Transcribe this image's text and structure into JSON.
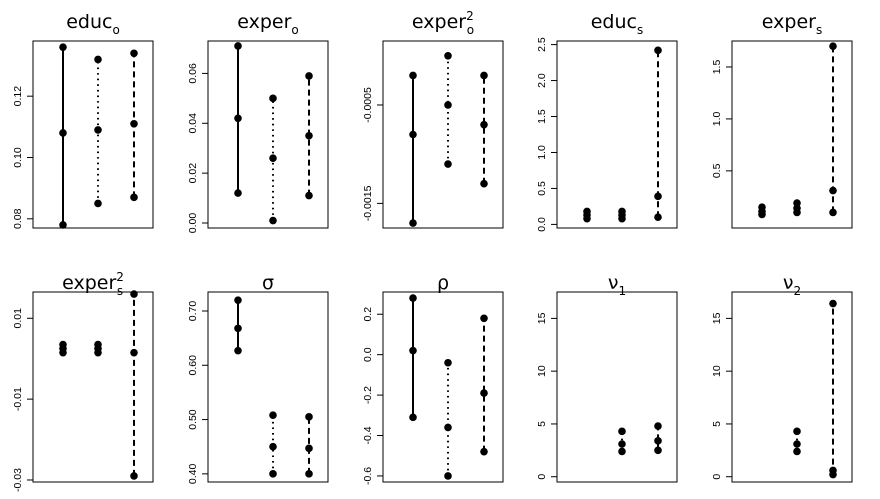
{
  "chart_data": [
    {
      "type": "interval",
      "title": "educ",
      "title_sub": "o",
      "title_sup": "",
      "ylim": [
        0.077,
        0.138
      ],
      "yticks": [
        0.08,
        0.1,
        0.12
      ],
      "ytick_labels": [
        "0.08",
        "0.10",
        "0.12"
      ],
      "series": [
        {
          "style": "solid",
          "values": [
            0.078,
            0.108,
            0.136
          ]
        },
        {
          "style": "dotted",
          "values": [
            0.085,
            0.109,
            0.132
          ]
        },
        {
          "style": "dashed",
          "values": [
            0.087,
            0.111,
            0.134
          ]
        }
      ]
    },
    {
      "type": "interval",
      "title": "exper",
      "title_sub": "o",
      "title_sup": "",
      "ylim": [
        -0.002,
        0.073
      ],
      "yticks": [
        0.0,
        0.02,
        0.04,
        0.06
      ],
      "ytick_labels": [
        "0.00",
        "0.02",
        "0.04",
        "0.06"
      ],
      "series": [
        {
          "style": "solid",
          "values": [
            0.012,
            0.042,
            0.071
          ]
        },
        {
          "style": "dotted",
          "values": [
            0.001,
            0.026,
            0.05
          ]
        },
        {
          "style": "dashed",
          "values": [
            0.011,
            0.035,
            0.059
          ]
        }
      ]
    },
    {
      "type": "interval",
      "title": "exper",
      "title_sub": "o",
      "title_sup": "2",
      "ylim": [
        -0.00175,
        0.00015
      ],
      "yticks": [
        -0.0015,
        -0.0005
      ],
      "ytick_labels": [
        "-0.0015",
        "-0.0005"
      ],
      "series": [
        {
          "style": "solid",
          "values": [
            -0.0017,
            -0.0008,
            -0.0002
          ]
        },
        {
          "style": "dotted",
          "values": [
            -0.0011,
            -0.0005,
            0.0
          ]
        },
        {
          "style": "dashed",
          "values": [
            -0.0013,
            -0.0007,
            -0.0002
          ]
        }
      ]
    },
    {
      "type": "interval",
      "title": "educ",
      "title_sub": "s",
      "title_sup": "",
      "ylim": [
        -0.05,
        2.55
      ],
      "yticks": [
        0.0,
        0.5,
        1.0,
        1.5,
        2.0,
        2.5
      ],
      "ytick_labels": [
        "0.0",
        "0.5",
        "1.0",
        "1.5",
        "2.0",
        "2.5"
      ],
      "series": [
        {
          "style": "solid",
          "values": [
            0.08,
            0.13,
            0.18
          ]
        },
        {
          "style": "dotted",
          "values": [
            0.08,
            0.13,
            0.18
          ]
        },
        {
          "style": "dashed",
          "values": [
            0.1,
            0.39,
            2.42
          ]
        }
      ]
    },
    {
      "type": "interval",
      "title": "exper",
      "title_sub": "s",
      "title_sup": "",
      "ylim": [
        -0.05,
        1.75
      ],
      "yticks": [
        0.5,
        1.0,
        1.5
      ],
      "ytick_labels": [
        "0.5",
        "1.0",
        "1.5"
      ],
      "series": [
        {
          "style": "solid",
          "values": [
            0.08,
            0.11,
            0.15
          ]
        },
        {
          "style": "dotted",
          "values": [
            0.1,
            0.14,
            0.19
          ]
        },
        {
          "style": "dashed",
          "values": [
            0.1,
            0.31,
            1.7
          ]
        }
      ]
    },
    {
      "type": "interval",
      "title": "exper",
      "title_sub": "s",
      "title_sup": "2",
      "ylim": [
        -0.0305,
        0.0165
      ],
      "yticks": [
        -0.03,
        -0.01,
        0.01
      ],
      "ytick_labels": [
        "-0.03",
        "-0.01",
        "0.01"
      ],
      "series": [
        {
          "style": "solid",
          "values": [
            0.0015,
            0.0025,
            0.0035
          ]
        },
        {
          "style": "dotted",
          "values": [
            0.0015,
            0.0025,
            0.0035
          ]
        },
        {
          "style": "dashed",
          "values": [
            -0.029,
            0.0015,
            0.016
          ]
        }
      ]
    },
    {
      "type": "interval",
      "title": "σ",
      "title_sub": "",
      "title_sup": "",
      "ylim": [
        0.385,
        0.735
      ],
      "yticks": [
        0.4,
        0.5,
        0.6,
        0.7
      ],
      "ytick_labels": [
        "0.40",
        "0.50",
        "0.60",
        "0.70"
      ],
      "series": [
        {
          "style": "solid",
          "values": [
            0.627,
            0.668,
            0.72
          ]
        },
        {
          "style": "dotted",
          "values": [
            0.4,
            0.45,
            0.508
          ]
        },
        {
          "style": "dashed",
          "values": [
            0.4,
            0.447,
            0.505
          ]
        }
      ]
    },
    {
      "type": "interval",
      "title": "ρ",
      "title_sub": "",
      "title_sup": "",
      "ylim": [
        -0.63,
        0.31
      ],
      "yticks": [
        -0.6,
        -0.4,
        -0.2,
        0.0,
        0.2
      ],
      "ytick_labels": [
        "-0.6",
        "-0.4",
        "-0.2",
        "0.0",
        "0.2"
      ],
      "series": [
        {
          "style": "solid",
          "values": [
            -0.31,
            0.02,
            0.28
          ]
        },
        {
          "style": "dotted",
          "values": [
            -0.6,
            -0.36,
            -0.04
          ]
        },
        {
          "style": "dashed",
          "values": [
            -0.48,
            -0.19,
            0.18
          ]
        }
      ]
    },
    {
      "type": "interval",
      "title": "ν",
      "title_sub": "1",
      "title_sup": "",
      "ylim": [
        -0.5,
        17.5
      ],
      "yticks": [
        0,
        5,
        10,
        15
      ],
      "ytick_labels": [
        "0",
        "5",
        "10",
        "15"
      ],
      "series": [
        {
          "style": "solid",
          "values": []
        },
        {
          "style": "dotted",
          "values": [
            2.4,
            3.1,
            4.3
          ]
        },
        {
          "style": "dashed",
          "values": [
            2.5,
            3.4,
            4.8
          ]
        }
      ]
    },
    {
      "type": "interval",
      "title": "ν",
      "title_sub": "2",
      "title_sup": "",
      "ylim": [
        -0.5,
        17.5
      ],
      "yticks": [
        0,
        5,
        10,
        15
      ],
      "ytick_labels": [
        "0",
        "5",
        "10",
        "15"
      ],
      "series": [
        {
          "style": "solid",
          "values": []
        },
        {
          "style": "dotted",
          "values": [
            2.4,
            3.1,
            4.3
          ]
        },
        {
          "style": "dashed",
          "values": [
            0.2,
            0.6,
            16.4
          ]
        }
      ]
    }
  ]
}
